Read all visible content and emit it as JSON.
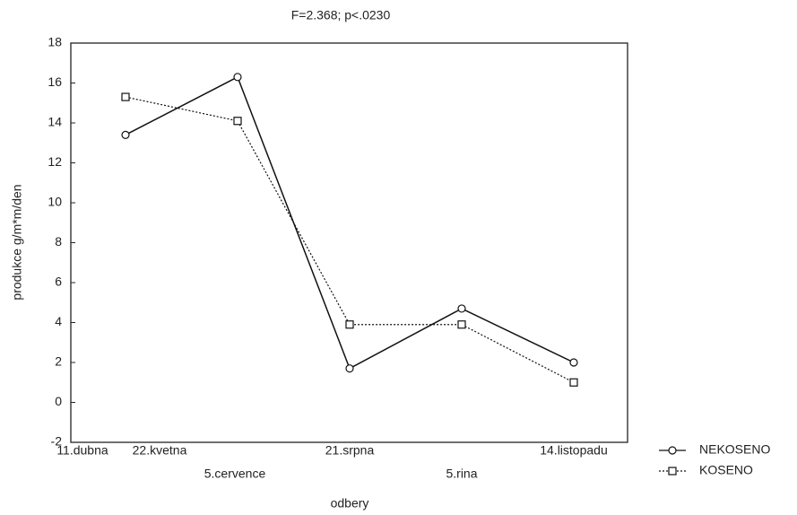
{
  "chart_data": {
    "type": "line",
    "title": "F=2.368; p<.0230",
    "x_label": "odbery",
    "y_label": "produkce g/m*m/den",
    "categories": [
      "11.dubna",
      "22.kvetna",
      "5.cervence",
      "21.srpna",
      "5.rina",
      "14.listopadu"
    ],
    "series": [
      {
        "name": "NEKOSENO",
        "color": "#111111",
        "linestyle": "solid",
        "marker": "circle",
        "values": [
          null,
          13.4,
          16.3,
          1.7,
          4.7,
          2.0
        ]
      },
      {
        "name": "KOSENO",
        "color": "#111111",
        "linestyle": "dotted",
        "marker": "square",
        "values": [
          null,
          15.3,
          14.1,
          3.9,
          3.9,
          1.0
        ]
      }
    ],
    "ylim": [
      -2,
      18
    ],
    "yticks": [
      -2,
      0,
      2,
      4,
      6,
      8,
      10,
      12,
      14,
      16,
      18
    ],
    "legend": "outside-bottom-right"
  }
}
